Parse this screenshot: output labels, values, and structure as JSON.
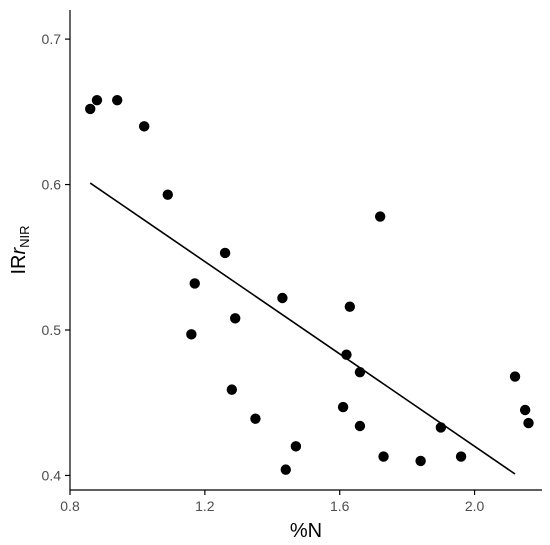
{
  "chart_data": {
    "type": "scatter",
    "title": "",
    "xlabel": "%N",
    "ylabel": {
      "main": "IR",
      "italic": "r",
      "subscript": "NIR"
    },
    "xlim": [
      0.8,
      2.2
    ],
    "ylim": [
      0.39,
      0.72
    ],
    "xticks": [
      {
        "value": 0.8,
        "label": "0.8"
      },
      {
        "value": 1.2,
        "label": "1.2"
      },
      {
        "value": 1.6,
        "label": "1.6"
      },
      {
        "value": 2.0,
        "label": "2.0"
      }
    ],
    "yticks": [
      {
        "value": 0.4,
        "label": "0.4"
      },
      {
        "value": 0.5,
        "label": "0.5"
      },
      {
        "value": 0.6,
        "label": "0.6"
      },
      {
        "value": 0.7,
        "label": "0.7"
      }
    ],
    "grid": false,
    "legend": "none",
    "point_color": "#000000",
    "points": [
      {
        "x": 0.86,
        "y": 0.652
      },
      {
        "x": 0.88,
        "y": 0.658
      },
      {
        "x": 0.94,
        "y": 0.658
      },
      {
        "x": 1.02,
        "y": 0.64
      },
      {
        "x": 1.09,
        "y": 0.593
      },
      {
        "x": 1.16,
        "y": 0.497
      },
      {
        "x": 1.17,
        "y": 0.532
      },
      {
        "x": 1.26,
        "y": 0.553
      },
      {
        "x": 1.28,
        "y": 0.459
      },
      {
        "x": 1.29,
        "y": 0.508
      },
      {
        "x": 1.35,
        "y": 0.439
      },
      {
        "x": 1.43,
        "y": 0.522
      },
      {
        "x": 1.44,
        "y": 0.404
      },
      {
        "x": 1.47,
        "y": 0.42
      },
      {
        "x": 1.61,
        "y": 0.447
      },
      {
        "x": 1.62,
        "y": 0.483
      },
      {
        "x": 1.63,
        "y": 0.516
      },
      {
        "x": 1.66,
        "y": 0.471
      },
      {
        "x": 1.66,
        "y": 0.434
      },
      {
        "x": 1.72,
        "y": 0.578
      },
      {
        "x": 1.73,
        "y": 0.413
      },
      {
        "x": 1.84,
        "y": 0.41
      },
      {
        "x": 1.9,
        "y": 0.433
      },
      {
        "x": 1.96,
        "y": 0.413
      },
      {
        "x": 2.12,
        "y": 0.468
      },
      {
        "x": 2.15,
        "y": 0.445
      },
      {
        "x": 2.16,
        "y": 0.436
      }
    ],
    "trend_line": {
      "x1": 0.86,
      "y1": 0.601,
      "x2": 2.12,
      "y2": 0.401
    }
  }
}
